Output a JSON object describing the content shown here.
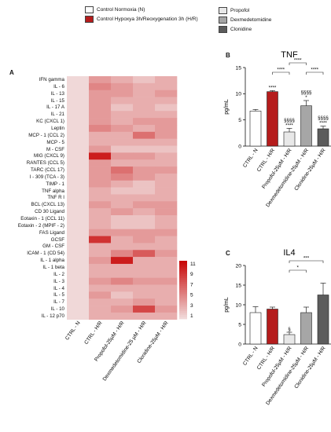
{
  "legend": [
    {
      "label": "Control Normoxia (N)",
      "color": "#ffffff"
    },
    {
      "label": "Control Hypoxya 3h/Reoxygenation 3h (H/R)",
      "color": "#b51c1c"
    },
    {
      "label": "Propofol",
      "color": "#e8e8e8"
    },
    {
      "label": "Dexmedetomidine",
      "color": "#a6a6a6"
    },
    {
      "label": "Clonidine",
      "color": "#5c5c5c"
    }
  ],
  "panels": {
    "A": "A",
    "B": "B",
    "C": "C"
  },
  "chart_data": [
    {
      "type": "heatmap",
      "panel": "A",
      "rows": [
        "IFN gamma",
        "IL - 6",
        "IL - 13",
        "IL - 15",
        "IL - 17 A",
        "IL - 21",
        "KC (CXCL 1)",
        "Leptin",
        "MCP - 1 (CCL 2)",
        "MCP - 5",
        "M - CSF",
        "MIG (CXCL 9)",
        "RANTES (CCL 5)",
        "TARC (CCL 17)",
        "I - 309 (TCA - 3)",
        "TIMP - 1",
        "TNF alpha",
        "TNF R I",
        "BCL (CXCL 13)",
        "CD 30 Ligand",
        "Eotaxin - 1 (CCL 11)",
        "Eotaxin - 2 (MPIF - 2)",
        "FAS Ligand",
        "GCSF",
        "GM - CSF",
        "ICAM - 1 (CD 54)",
        "IL - 1 alpha",
        "IL - 1 beta",
        "IL - 2",
        "IL - 3",
        "IL - 4",
        "IL - 5",
        "IL - 7",
        "IL - 10",
        "IL - 12 p70"
      ],
      "columns": [
        "CTRL - N",
        "CTRL - H/R",
        "Propofol-25µM - H/R",
        "Dexmedetomidine-25 µM - H/R",
        "Clonidine-25µM - H/R"
      ],
      "values": [
        [
          1,
          4,
          3,
          2,
          3
        ],
        [
          1,
          5,
          4,
          3,
          3
        ],
        [
          1,
          4,
          4,
          3,
          4
        ],
        [
          1,
          4,
          3,
          3,
          3
        ],
        [
          1,
          4,
          2,
          3,
          2
        ],
        [
          1,
          4,
          3,
          3,
          3
        ],
        [
          1,
          4,
          3,
          4,
          4
        ],
        [
          1,
          5,
          4,
          3,
          4
        ],
        [
          1,
          3,
          3,
          6,
          4
        ],
        [
          1,
          3,
          3,
          3,
          3
        ],
        [
          1,
          4,
          2,
          2,
          2
        ],
        [
          1,
          10,
          4,
          4,
          3
        ],
        [
          1,
          4,
          3,
          3,
          3
        ],
        [
          1,
          4,
          6,
          4,
          4
        ],
        [
          1,
          4,
          5,
          4,
          3
        ],
        [
          1,
          4,
          3,
          2,
          3
        ],
        [
          1,
          3,
          2,
          2,
          3
        ],
        [
          1,
          3,
          3,
          3,
          3
        ],
        [
          1,
          4,
          3,
          4,
          4
        ],
        [
          1,
          3,
          4,
          3,
          4
        ],
        [
          1,
          3,
          2,
          2,
          3
        ],
        [
          1,
          3,
          2,
          2,
          3
        ],
        [
          1,
          4,
          4,
          4,
          4
        ],
        [
          1,
          9,
          3,
          4,
          3
        ],
        [
          1,
          3,
          3,
          3,
          3
        ],
        [
          1,
          3,
          5,
          7,
          4
        ],
        [
          1,
          4,
          10,
          3,
          3
        ],
        [
          1,
          3,
          3,
          3,
          3
        ],
        [
          1,
          3,
          3,
          3,
          3
        ],
        [
          1,
          4,
          5,
          4,
          4
        ],
        [
          1,
          3,
          3,
          3,
          3
        ],
        [
          1,
          4,
          2,
          3,
          3
        ],
        [
          1,
          3,
          3,
          4,
          3
        ],
        [
          1,
          3,
          4,
          8,
          4
        ],
        [
          1,
          3,
          3,
          3,
          3
        ]
      ],
      "colorbar": {
        "ticks": [
          11,
          9,
          7,
          5,
          3,
          1
        ],
        "min": 1,
        "max": 11
      }
    },
    {
      "type": "bar",
      "panel": "B",
      "title": "TNF",
      "ylabel": "pg/mL",
      "ylim": [
        0,
        15
      ],
      "yticks": [
        0,
        5,
        10,
        15
      ],
      "categories": [
        "CTRL - N",
        "CTRL - H/R",
        "Propofol-25µM - H/R",
        "Dexmedetomidine-25µM - H/R",
        "Clonidine-25µM - H/R"
      ],
      "values": [
        6.7,
        10.4,
        2.7,
        7.7,
        3.3
      ],
      "errors": [
        0.3,
        0.2,
        0.7,
        1.0,
        0.5
      ],
      "colors": [
        "#ffffff",
        "#b51c1c",
        "#e8e8e8",
        "#a6a6a6",
        "#5c5c5c"
      ],
      "annotations": [
        {
          "bar": 1,
          "lines": [
            "****"
          ]
        },
        {
          "bar": 2,
          "lines": [
            "§§§§",
            "****"
          ]
        },
        {
          "bar": 3,
          "lines": [
            "§§§§",
            "*"
          ]
        },
        {
          "bar": 4,
          "lines": [
            "§§§§",
            "****"
          ]
        }
      ],
      "brackets": [
        {
          "from": 2,
          "to": 3,
          "label": "****",
          "level": 2
        },
        {
          "from": 1,
          "to": 2,
          "label": "****",
          "level": 1
        },
        {
          "from": 3,
          "to": 4,
          "label": "****",
          "level": 1
        }
      ]
    },
    {
      "type": "bar",
      "panel": "C",
      "title": "IL4",
      "ylabel": "pg/mL",
      "ylim": [
        0,
        20
      ],
      "yticks": [
        0,
        5,
        10,
        15,
        20
      ],
      "categories": [
        "CTRL - N",
        "CTRL - H/R",
        "Propofol-25µM - H/R",
        "Dexmedetomidine-25µM - H/R",
        "Clonidine-25µM - H/R"
      ],
      "values": [
        8.0,
        8.9,
        2.4,
        8.0,
        12.5
      ],
      "errors": [
        1.5,
        0.5,
        0.6,
        1.4,
        3.0
      ],
      "colors": [
        "#ffffff",
        "#b51c1c",
        "#e8e8e8",
        "#a6a6a6",
        "#5c5c5c"
      ],
      "annotations": [
        {
          "bar": 2,
          "lines": [
            "§"
          ]
        }
      ],
      "brackets": [
        {
          "from": 2,
          "to": 3,
          "label": "*",
          "level": 1
        },
        {
          "from": 2,
          "to": 4,
          "label": "***",
          "level": 2
        }
      ]
    }
  ]
}
